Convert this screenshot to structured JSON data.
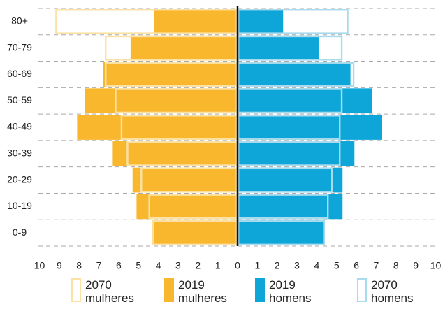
{
  "chart_data": {
    "type": "pyramid",
    "categories": [
      "80+",
      "70-79",
      "60-69",
      "50-59",
      "40-49",
      "30-39",
      "20-29",
      "10-19",
      "0-9"
    ],
    "series": [
      {
        "name": "2070 mulheres",
        "side": "left",
        "style": "outline",
        "color": "#fbe2a4",
        "values": [
          9.2,
          6.7,
          6.7,
          6.2,
          5.9,
          5.6,
          4.9,
          4.5,
          4.3
        ]
      },
      {
        "name": "2019 mulheres",
        "side": "left",
        "style": "fill",
        "color": "#f9b72d",
        "values": [
          4.2,
          5.4,
          6.8,
          7.7,
          8.1,
          6.3,
          5.3,
          5.1,
          4.3
        ]
      },
      {
        "name": "2019 homens",
        "side": "right",
        "style": "fill",
        "color": "#0ea6d9",
        "values": [
          2.3,
          4.1,
          5.7,
          6.8,
          7.3,
          5.9,
          5.3,
          5.3,
          4.4
        ]
      },
      {
        "name": "2070 homens",
        "side": "right",
        "style": "outline",
        "color": "#a9dbee",
        "values": [
          5.6,
          5.3,
          5.9,
          5.3,
          5.2,
          5.2,
          4.8,
          4.6,
          4.4
        ]
      }
    ],
    "xlim": [
      0,
      10
    ],
    "xticks_left": [
      10,
      9,
      8,
      7,
      6,
      5,
      4,
      3,
      2,
      1,
      0
    ],
    "xticks_right": [
      1,
      2,
      3,
      4,
      5,
      6,
      7,
      8,
      9,
      10
    ],
    "grid": true
  }
}
